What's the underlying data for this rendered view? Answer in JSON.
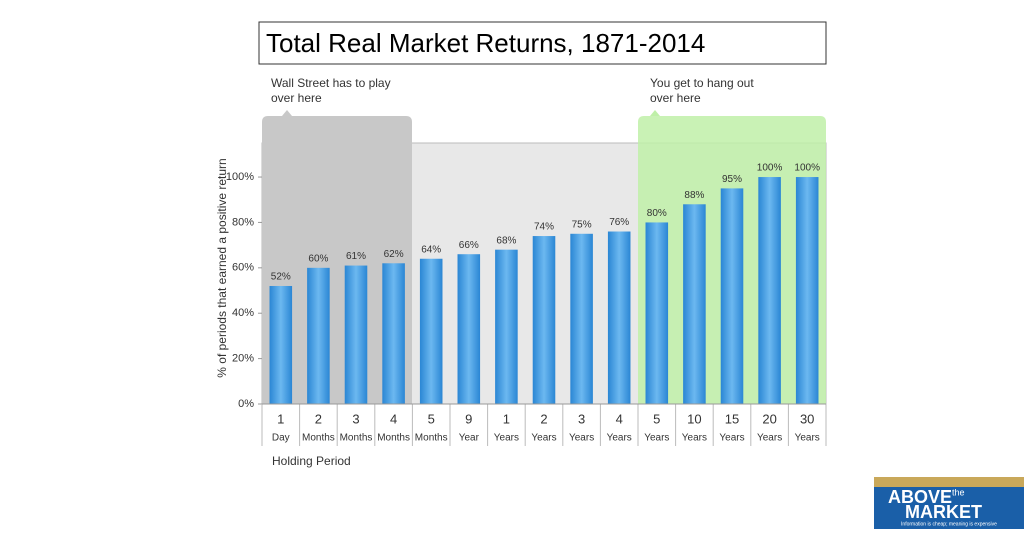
{
  "chart_data": {
    "type": "bar",
    "title": "Total Real Market Returns, 1871-2014",
    "categories": [
      [
        "1",
        "Day"
      ],
      [
        "2",
        "Months"
      ],
      [
        "3",
        "Months"
      ],
      [
        "4",
        "Months"
      ],
      [
        "5",
        "Months"
      ],
      [
        "9",
        "Year"
      ],
      [
        "1",
        "Years"
      ],
      [
        "2",
        "Years"
      ],
      [
        "3",
        "Years"
      ],
      [
        "4",
        "Years"
      ],
      [
        "5",
        "Years"
      ],
      [
        "10",
        "Years"
      ],
      [
        "15",
        "Years"
      ],
      [
        "20",
        "Years"
      ],
      [
        "30",
        "Years"
      ]
    ],
    "values": [
      52,
      60,
      61,
      62,
      64,
      66,
      68,
      74,
      75,
      76,
      80,
      88,
      95,
      100,
      100
    ],
    "value_labels": [
      "52%",
      "60%",
      "61%",
      "62%",
      "64%",
      "66%",
      "68%",
      "74%",
      "75%",
      "76%",
      "80%",
      "88%",
      "95%",
      "100%",
      "100%"
    ],
    "color": "#3a9ae0",
    "ylim": [
      0,
      115
    ],
    "yticks": [
      {
        "value": 0,
        "label": "0%"
      },
      {
        "value": 20,
        "label": "20%"
      },
      {
        "value": 40,
        "label": "40%"
      },
      {
        "value": 60,
        "label": "60%"
      },
      {
        "value": 80,
        "label": "80%"
      },
      {
        "value": 100,
        "label": "100%"
      }
    ],
    "y_label": "% of periods that earned a positive return",
    "x_label": "Holding Period",
    "annotations": [
      [
        "Wall Street has to play",
        "over here"
      ],
      [
        "You get to hang out",
        "over here"
      ]
    ]
  },
  "logo": {
    "word1": "ABOVE",
    "small": "the",
    "word2": "MARKET",
    "tagline": "Information is cheap; meaning is expensive"
  }
}
